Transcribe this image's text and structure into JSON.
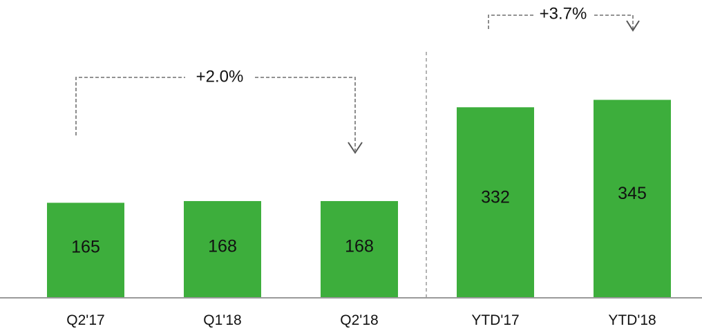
{
  "chart_data": {
    "type": "bar",
    "title": "",
    "xlabel": "",
    "ylabel": "",
    "categories": [
      "Q2'17",
      "Q1'18",
      "Q2'18",
      "YTD'17",
      "YTD'18"
    ],
    "values": [
      165,
      168,
      168,
      332,
      345
    ],
    "value_labels": [
      "165",
      "168",
      "168",
      "332",
      "345"
    ],
    "ylim": [
      0,
      350
    ],
    "grid": false,
    "legend": "none",
    "bar_color": "#3DAE3C",
    "annotations": [
      {
        "text": "+2.0%",
        "from": "Q2'17",
        "to": "Q2'18"
      },
      {
        "text": "+3.7%",
        "from": "YTD'17",
        "to": "YTD'18"
      }
    ],
    "separator_after": "Q2'18"
  }
}
